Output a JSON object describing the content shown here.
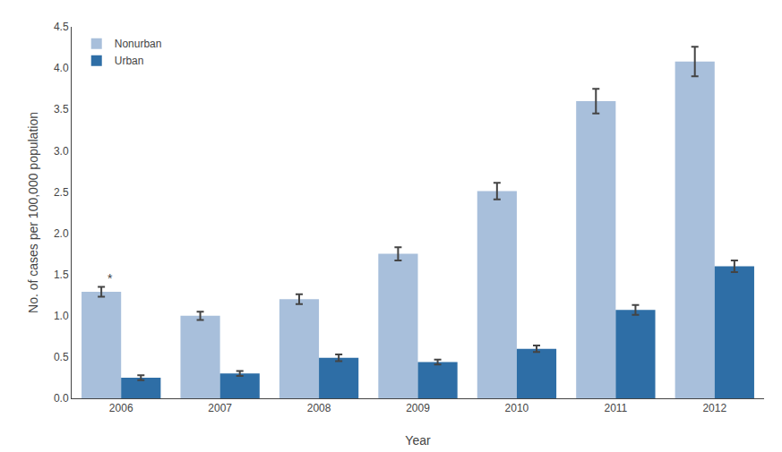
{
  "chart_data": {
    "type": "bar",
    "categories": [
      "2006",
      "2007",
      "2008",
      "2009",
      "2010",
      "2011",
      "2012"
    ],
    "series": [
      {
        "name": "Nonurban",
        "color": "#a8bfdb",
        "values": [
          1.29,
          1.0,
          1.2,
          1.75,
          2.51,
          3.6,
          4.08
        ],
        "errors": [
          0.06,
          0.05,
          0.06,
          0.08,
          0.1,
          0.15,
          0.18
        ]
      },
      {
        "name": "Urban",
        "color": "#2e6ea6",
        "values": [
          0.25,
          0.3,
          0.49,
          0.44,
          0.6,
          1.07,
          1.6
        ],
        "errors": [
          0.03,
          0.03,
          0.04,
          0.03,
          0.04,
          0.06,
          0.07
        ]
      }
    ],
    "xlabel": "Year",
    "ylabel": "No. of cases per 100,000 population",
    "ylim": [
      0.0,
      4.5
    ],
    "yticks": [
      {
        "value": 0.0,
        "label": "0.0"
      },
      0.5,
      {
        "value": 1.0,
        "label": "1.0"
      },
      1.5,
      {
        "value": 2.0,
        "label": "2.0"
      },
      2.5,
      {
        "value": 3.0,
        "label": "3.0"
      },
      3.5,
      {
        "value": 4.0,
        "label": "4.0"
      },
      4.5
    ],
    "annotations": [
      {
        "text": "*",
        "x": "2006",
        "series": "Nonurban"
      }
    ],
    "grid": false,
    "legend": "upper left"
  }
}
